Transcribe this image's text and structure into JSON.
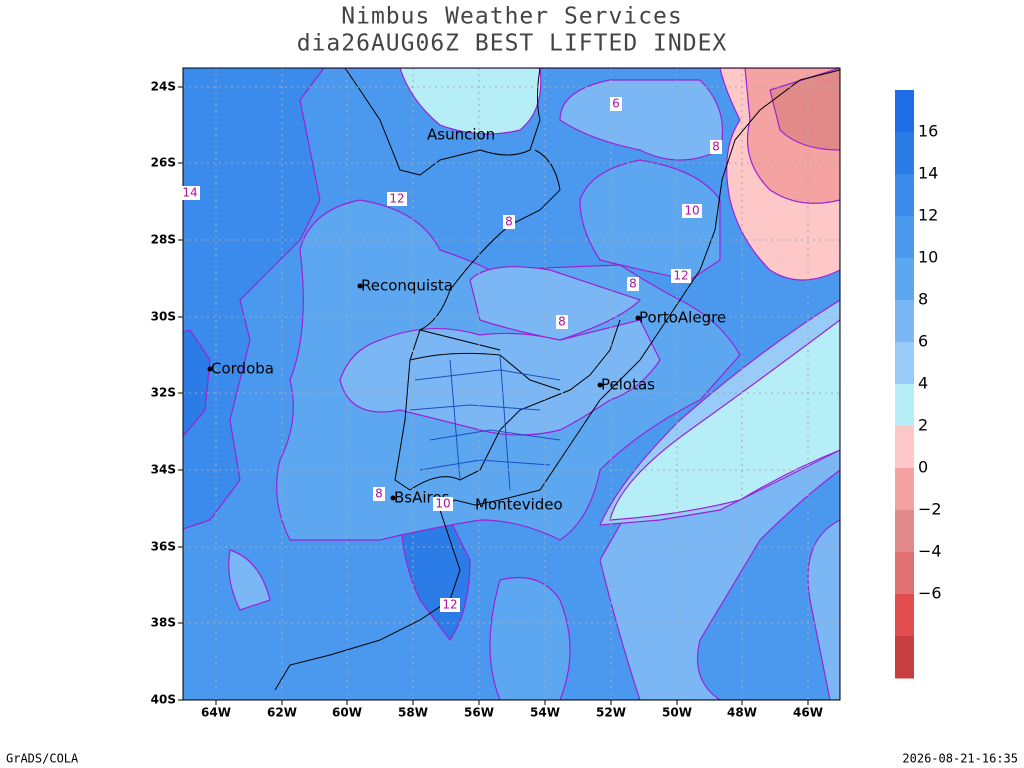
{
  "header": {
    "title": "Nimbus Weather Services",
    "subtitle": "dia26AUG06Z BEST LIFTED INDEX"
  },
  "map": {
    "x_labels": [
      "64W",
      "62W",
      "60W",
      "58W",
      "56W",
      "54W",
      "52W",
      "50W",
      "48W",
      "46W"
    ],
    "y_labels": [
      "24S",
      "26S",
      "28S",
      "30S",
      "32S",
      "34S",
      "36S",
      "38S",
      "40S"
    ],
    "cities": [
      "Asuncion",
      "Reconquista",
      "PortoAlegre",
      "Cordoba",
      "Pelotas",
      "BsAires",
      "Montevideo"
    ],
    "contour_labels": [
      "6",
      "8",
      "14",
      "12",
      "8",
      "10",
      "12",
      "8",
      "8",
      "8",
      "10",
      "12"
    ]
  },
  "colorbar": {
    "colors": [
      "#1f6de6",
      "#2c7ce8",
      "#3a8bec",
      "#4a99ee",
      "#5ca7f0",
      "#7ab7f4",
      "#98cbf7",
      "#b6eef8",
      "#fec8c8",
      "#f4a2a2",
      "#e28a8a",
      "#e07272",
      "#e24e4e",
      "#c83e3e"
    ],
    "labels": [
      "16",
      "14",
      "12",
      "10",
      "8",
      "6",
      "4",
      "2",
      "0",
      "−2",
      "−4",
      "−6"
    ]
  },
  "footer": {
    "left": "GrADS/COLA",
    "right": "2026-08-21-16:35"
  }
}
